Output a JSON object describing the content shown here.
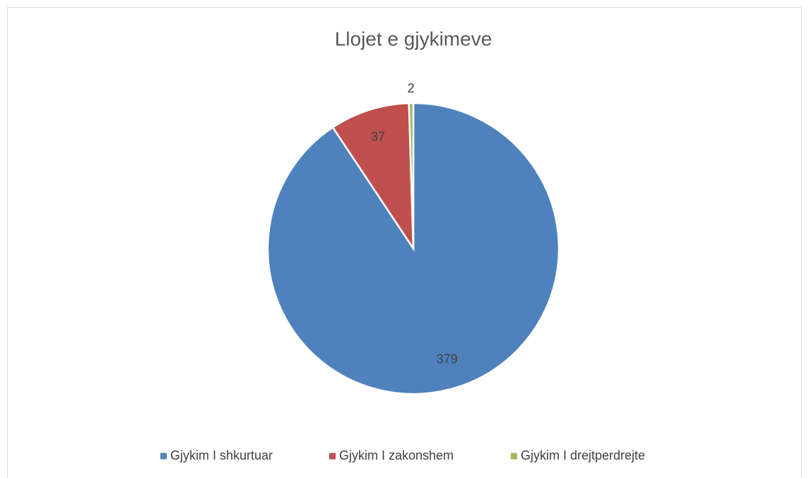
{
  "chart_data": {
    "type": "pie",
    "title": "Llojet e gjykimeve",
    "categories": [
      "Gjykim I shkurtuar",
      "Gjykim I zakonshem",
      "Gjykim I drejtperdrejte"
    ],
    "values": [
      379,
      37,
      2
    ],
    "colors": [
      "#4f81bd",
      "#c0504d",
      "#9bbb59"
    ],
    "legend": "bottom"
  }
}
